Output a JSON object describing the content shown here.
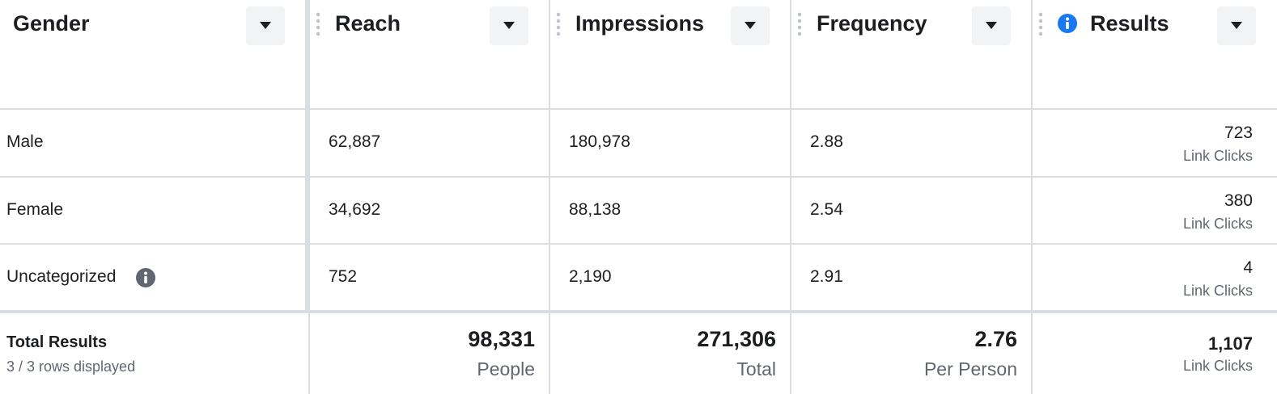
{
  "table": {
    "columns": [
      "Gender",
      "Reach",
      "Impressions",
      "Frequency",
      "Results"
    ],
    "rows": [
      {
        "label": "Male",
        "cells": [
          "62,887",
          "180,978",
          "2.88"
        ],
        "result": "723",
        "result_unit": "Link Clicks"
      },
      {
        "label": "Female",
        "cells": [
          "34,692",
          "88,138",
          "2.54"
        ],
        "result": "380",
        "result_unit": "Link Clicks"
      },
      {
        "label": "Uncategorized",
        "cells": [
          "752",
          "2,190",
          "2.91"
        ],
        "result": "4",
        "result_unit": "Link Clicks"
      }
    ],
    "totals": {
      "label": "Total Results",
      "note": "3 / 3 rows displayed",
      "cells": [
        {
          "value": "98,331",
          "unit": "People"
        },
        {
          "value": "271,306",
          "unit": "Total"
        },
        {
          "value": "2.76",
          "unit": "Per Person"
        },
        {
          "value": "1,107",
          "unit": "Link Clicks"
        }
      ]
    }
  }
}
